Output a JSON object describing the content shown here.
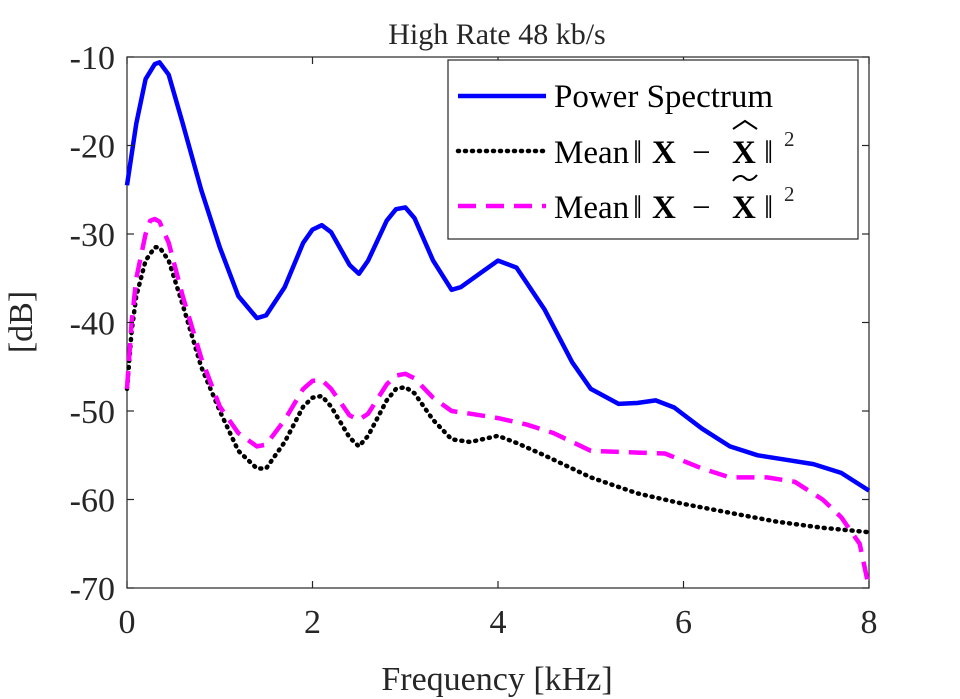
{
  "chart_data": {
    "type": "line",
    "title": "High Rate 48 kb/s",
    "xlabel": "Frequency [kHz]",
    "ylabel": "[dB]",
    "xlim": [
      0,
      8
    ],
    "ylim": [
      -70,
      -10
    ],
    "xticks": [
      0,
      2,
      4,
      6,
      8
    ],
    "xtick_labels": [
      "0",
      "2",
      "4",
      "6",
      "8"
    ],
    "yticks": [
      -10,
      -20,
      -30,
      -40,
      -50,
      -60,
      -70
    ],
    "ytick_labels": [
      "-10",
      "-20",
      "-30",
      "-40",
      "-50",
      "-60",
      "-70"
    ],
    "grid": false,
    "legend_position": "top-right",
    "series": [
      {
        "name": "Power Spectrum",
        "legend_text": "Power Spectrum",
        "color": "#0000ff",
        "style": "solid",
        "x": [
          0,
          0.1,
          0.2,
          0.3,
          0.35,
          0.45,
          0.6,
          0.8,
          1.0,
          1.2,
          1.4,
          1.5,
          1.7,
          1.9,
          2.0,
          2.1,
          2.2,
          2.4,
          2.5,
          2.6,
          2.8,
          2.9,
          3.0,
          3.1,
          3.3,
          3.5,
          3.6,
          3.8,
          4.0,
          4.2,
          4.5,
          4.8,
          5.0,
          5.3,
          5.5,
          5.7,
          5.9,
          6.2,
          6.5,
          6.8,
          7.1,
          7.4,
          7.7,
          8.0
        ],
        "y": [
          -24.5,
          -17.5,
          -12.5,
          -10.8,
          -10.6,
          -12,
          -17.5,
          -25,
          -31.5,
          -37,
          -39.5,
          -39.2,
          -36,
          -31,
          -29.5,
          -29,
          -29.8,
          -33.5,
          -34.5,
          -33,
          -28.5,
          -27.2,
          -27,
          -28.2,
          -33,
          -36.3,
          -36,
          -34.5,
          -33,
          -33.8,
          -38.5,
          -44.5,
          -47.5,
          -49.2,
          -49.1,
          -48.8,
          -49.6,
          -52,
          -54,
          -55,
          -55.5,
          -56,
          -57,
          -59
        ]
      },
      {
        "name": "Mean||X - X-hat||^2",
        "legend_prefix": "Mean",
        "legend_var": "X",
        "legend_accent": "hat",
        "color": "#000000",
        "style": "dotted",
        "x": [
          0,
          0.05,
          0.1,
          0.2,
          0.3,
          0.35,
          0.45,
          0.6,
          0.8,
          1.0,
          1.2,
          1.4,
          1.5,
          1.7,
          1.9,
          2.0,
          2.1,
          2.2,
          2.4,
          2.5,
          2.6,
          2.8,
          2.9,
          3.0,
          3.1,
          3.3,
          3.5,
          3.7,
          4.0,
          4.2,
          4.5,
          5.0,
          5.5,
          6.0,
          6.5,
          7.0,
          7.5,
          8.0
        ],
        "y": [
          -47.5,
          -41,
          -37,
          -33,
          -31.5,
          -31.5,
          -33,
          -38,
          -45,
          -50,
          -54.5,
          -56.5,
          -56.5,
          -53.5,
          -49.5,
          -48.5,
          -48.3,
          -49.5,
          -53,
          -54,
          -52.8,
          -48.8,
          -47.5,
          -47.3,
          -48,
          -51,
          -53.2,
          -53.5,
          -52.8,
          -53.6,
          -55,
          -57.5,
          -59.3,
          -60.5,
          -61.5,
          -62.5,
          -63.2,
          -63.7
        ]
      },
      {
        "name": "Mean||X - X-tilde||^2",
        "legend_prefix": "Mean",
        "legend_var": "X",
        "legend_accent": "tilde",
        "color": "#ff00ff",
        "style": "dashed",
        "x": [
          0,
          0.05,
          0.1,
          0.2,
          0.25,
          0.3,
          0.35,
          0.45,
          0.6,
          0.8,
          1.0,
          1.2,
          1.4,
          1.5,
          1.7,
          1.9,
          2.0,
          2.1,
          2.2,
          2.4,
          2.5,
          2.6,
          2.8,
          2.9,
          3.0,
          3.1,
          3.3,
          3.5,
          3.7,
          4.0,
          4.3,
          4.6,
          5.0,
          5.5,
          5.8,
          6.2,
          6.5,
          6.9,
          7.2,
          7.5,
          7.7,
          7.9,
          8.0
        ],
        "y": [
          -47.5,
          -40,
          -35,
          -30,
          -28.5,
          -28.3,
          -28.6,
          -31,
          -37,
          -44,
          -49.5,
          -52.5,
          -54,
          -53.8,
          -51,
          -47.5,
          -46.6,
          -46.5,
          -47.5,
          -50.5,
          -51,
          -50.3,
          -47,
          -46,
          -45.8,
          -46.3,
          -48.5,
          -50,
          -50.3,
          -50.8,
          -51.5,
          -52.5,
          -54.5,
          -54.7,
          -54.8,
          -56.5,
          -57.5,
          -57.5,
          -58,
          -60,
          -62,
          -65,
          -70
        ]
      }
    ]
  }
}
